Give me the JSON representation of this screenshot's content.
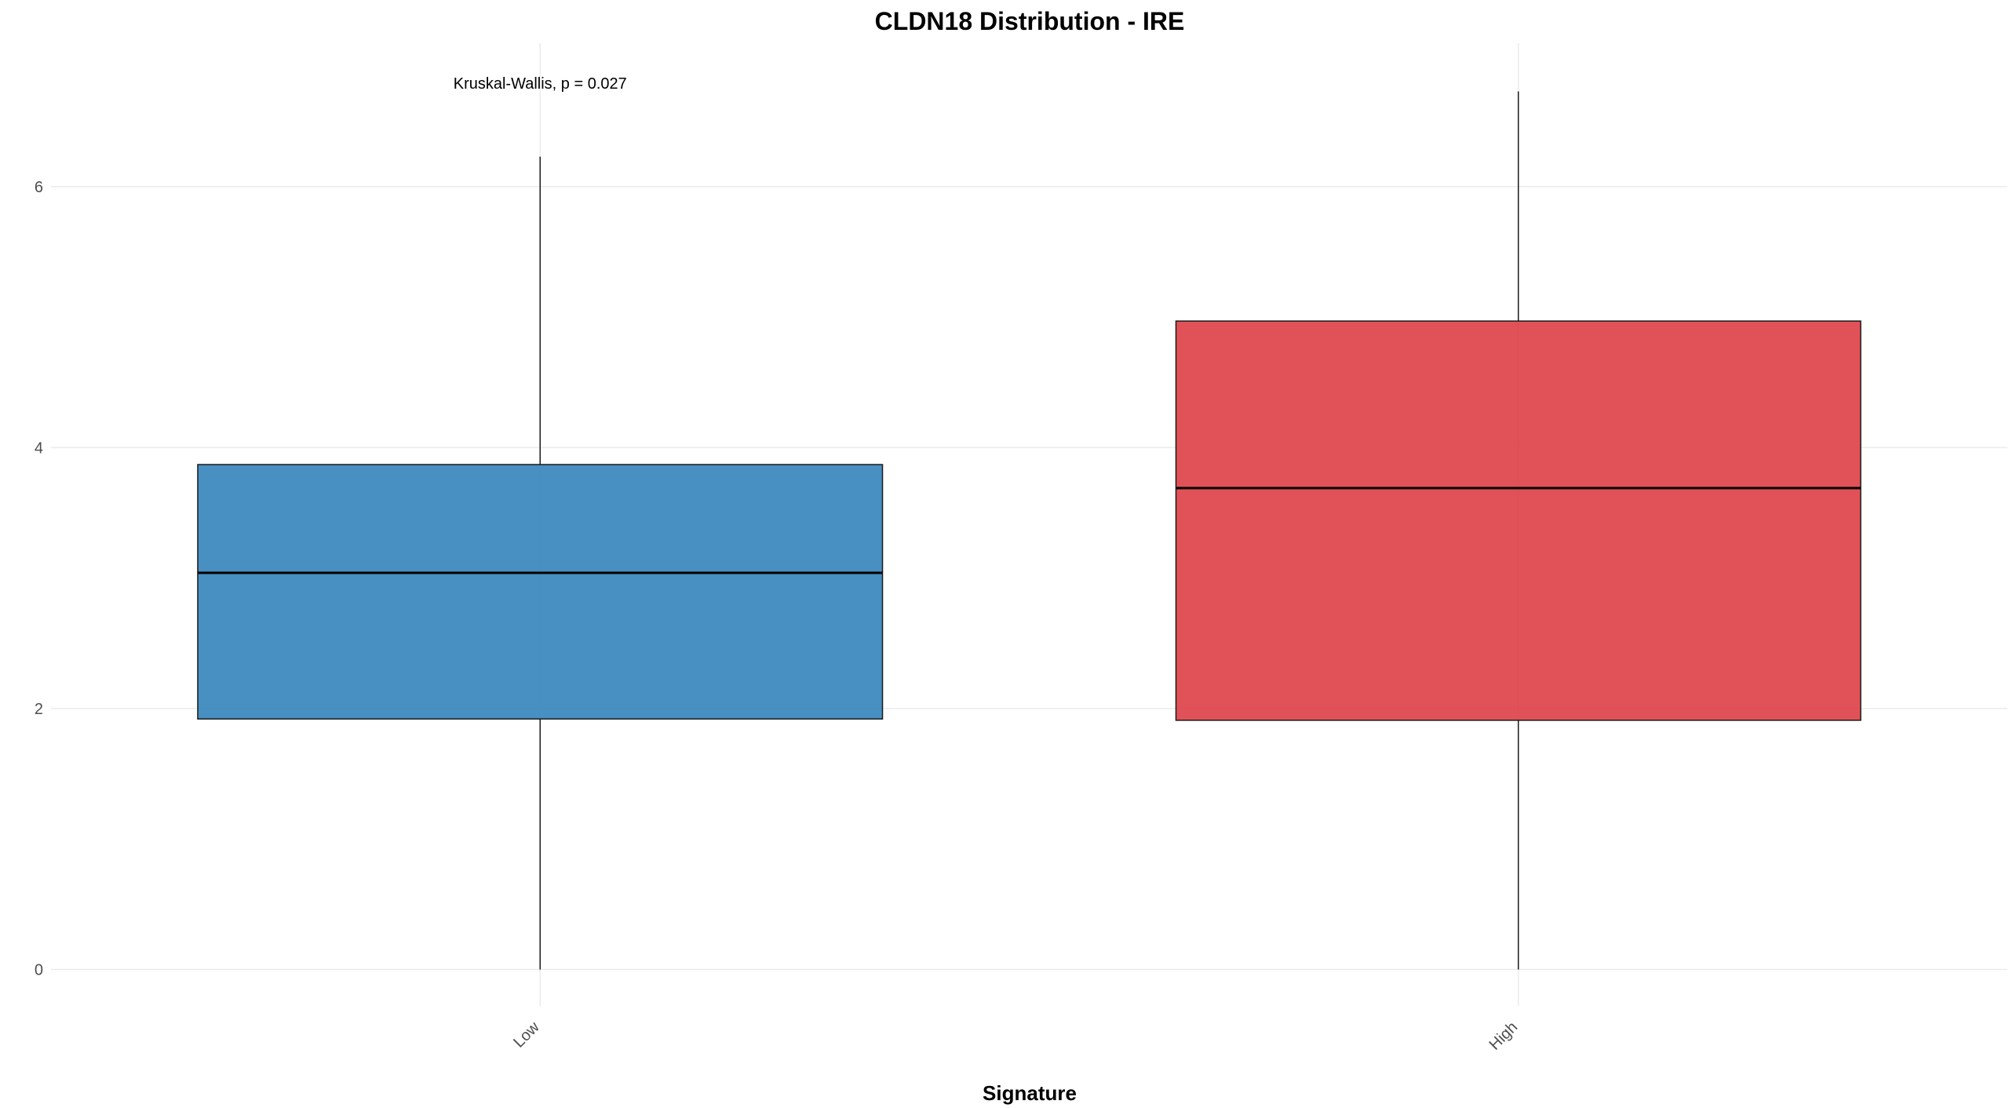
{
  "chart_data": {
    "type": "boxplot",
    "title": "CLDN18 Distribution - IRE",
    "xlabel": "Signature",
    "ylabel": "",
    "categories": [
      "Low",
      "High"
    ],
    "y_ticks": [
      0,
      2,
      4,
      6
    ],
    "ylim": [
      -0.28,
      7.1
    ],
    "grid": true,
    "legend": "none",
    "boxes": [
      {
        "category": "Low",
        "min": 0.0,
        "q1": 1.92,
        "median": 3.04,
        "q3": 3.87,
        "max": 6.23,
        "color": "#2f7fba"
      },
      {
        "category": "High",
        "min": 0.0,
        "q1": 1.91,
        "median": 3.69,
        "q3": 4.97,
        "max": 6.73,
        "color": "#dc3a40"
      }
    ],
    "annotation": {
      "text": "Kruskal-Wallis, p = 0.027",
      "category": "Low",
      "y": 6.75
    }
  }
}
